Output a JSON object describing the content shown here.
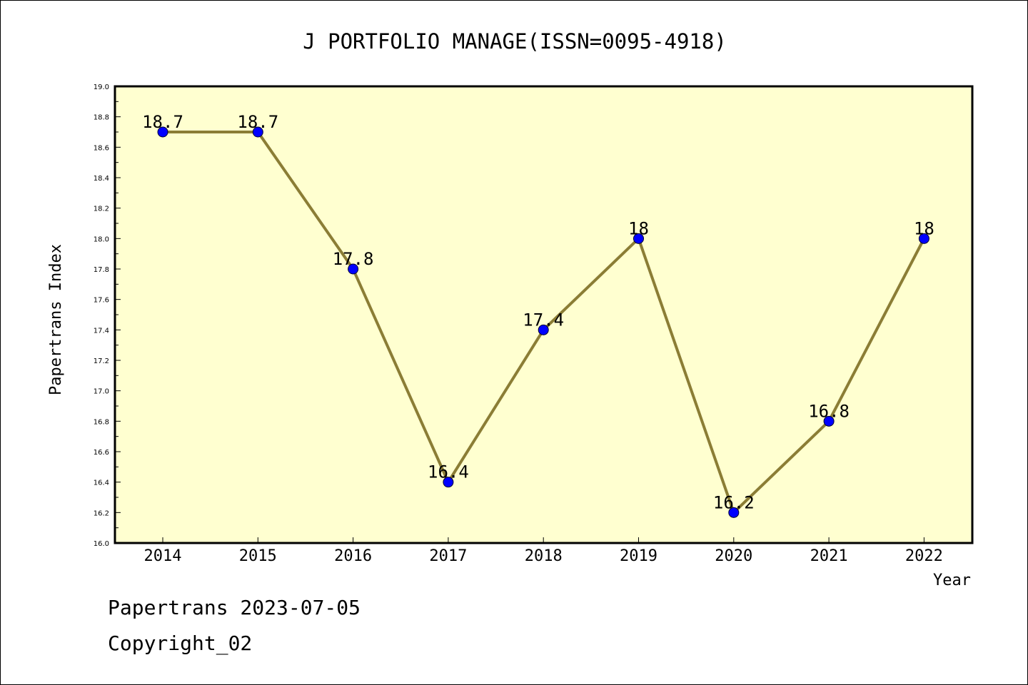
{
  "chart_data": {
    "type": "line",
    "title": "J PORTFOLIO MANAGE(ISSN=0095-4918)",
    "xlabel": "Year",
    "ylabel": "Papertrans Index",
    "categories": [
      "2014",
      "2015",
      "2016",
      "2017",
      "2018",
      "2019",
      "2020",
      "2021",
      "2022"
    ],
    "values": [
      18.7,
      18.7,
      17.8,
      16.4,
      17.4,
      18.0,
      16.2,
      16.8,
      18.0
    ],
    "data_labels": [
      "18.7",
      "18.7",
      "17.8",
      "16.4",
      "17.4",
      "18",
      "16.2",
      "16.8",
      "18"
    ],
    "ylim": [
      16.0,
      19.0
    ],
    "yticks": [
      "16.0",
      "16.2",
      "16.4",
      "16.6",
      "16.8",
      "17.0",
      "17.2",
      "17.4",
      "17.6",
      "17.8",
      "18.0",
      "18.2",
      "18.4",
      "18.6",
      "18.8",
      "19.0"
    ],
    "grid": false,
    "legend": "none",
    "colors": {
      "plot_background": "#ffffd0",
      "line": "#8b7d35",
      "marker": "#0000ff"
    }
  },
  "footer": {
    "line1": "Papertrans 2023-07-05",
    "line2": "Copyright_02"
  }
}
